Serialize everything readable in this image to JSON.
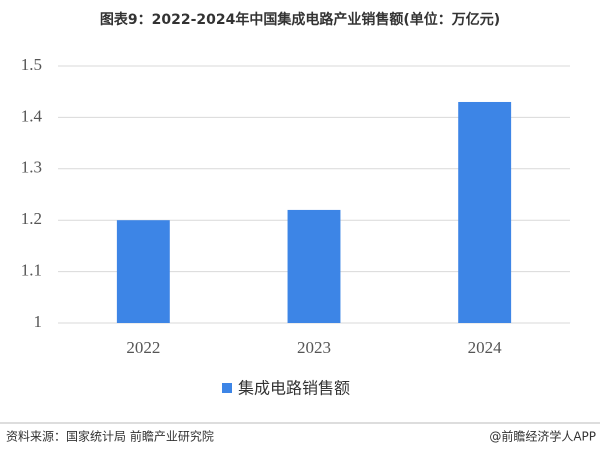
{
  "chart_data": {
    "type": "bar",
    "title": "图表9：2022-2024年中国集成电路产业销售额(单位：万亿元)",
    "categories": [
      "2022",
      "2023",
      "2024"
    ],
    "series": [
      {
        "name": "集成电路销售额",
        "color": "#3d85e6",
        "values": [
          1.2,
          1.22,
          1.43
        ]
      }
    ],
    "ylim": [
      1,
      1.5
    ],
    "yticks": [
      1,
      1.1,
      1.2,
      1.3,
      1.4,
      1.5
    ],
    "grid": true,
    "legend": "bottom",
    "source": "资料来源：国家统计局 前瞻产业研究院",
    "credit": "@前瞻经济学人APP"
  }
}
